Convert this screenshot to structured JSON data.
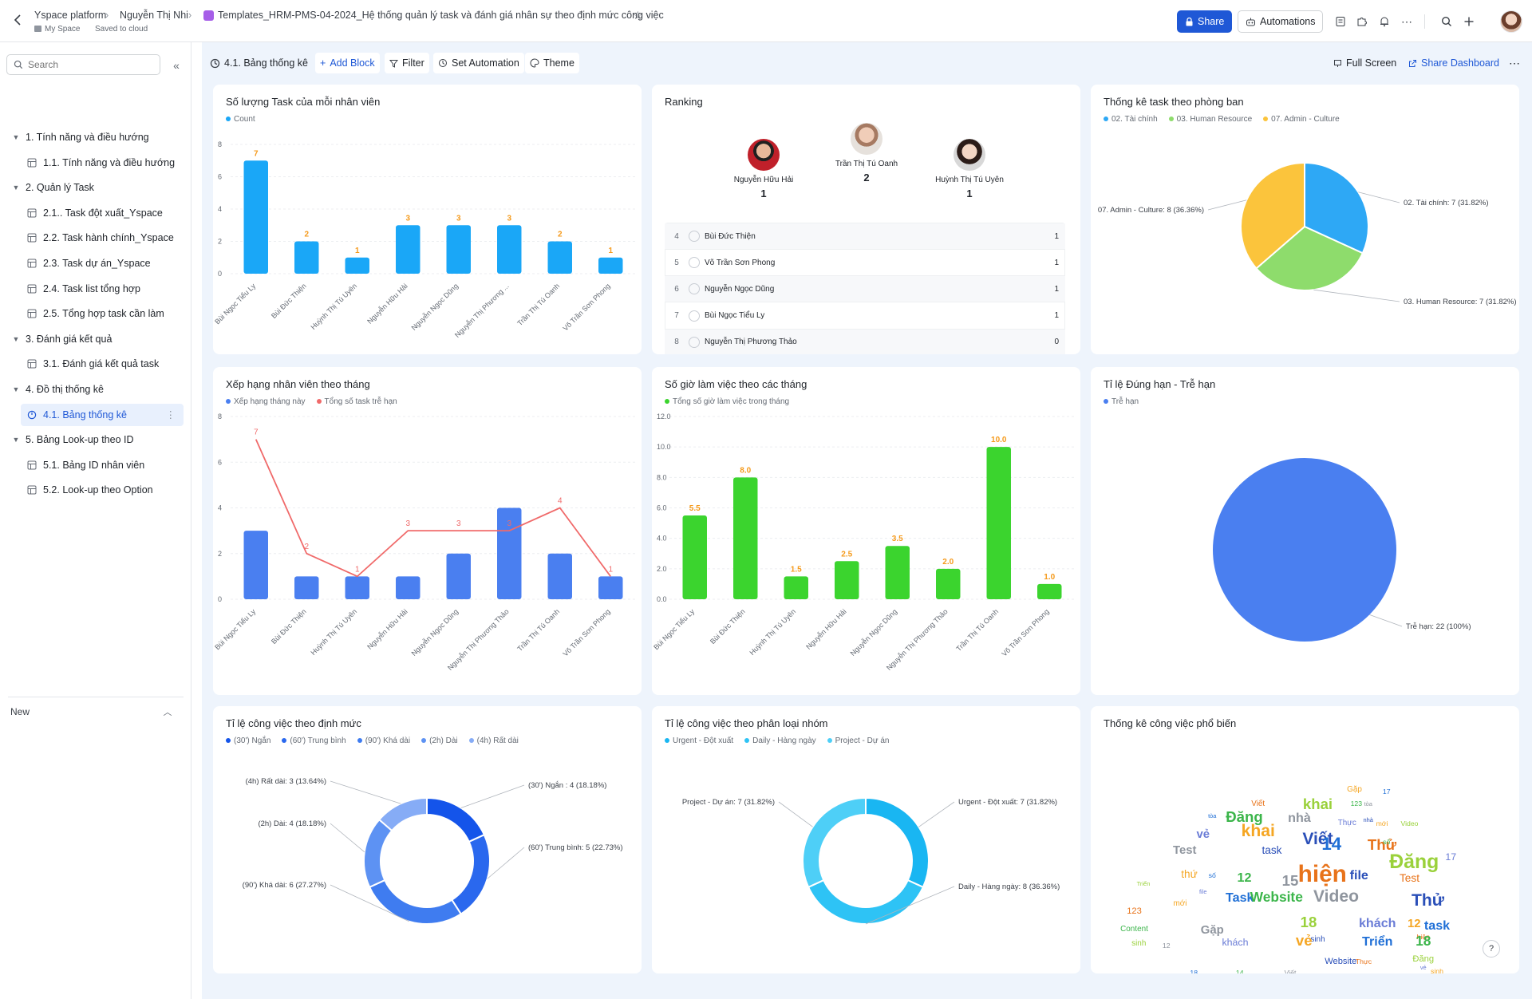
{
  "header": {
    "breadcrumb": [
      "Yspace platform",
      "Nguyễn Thị Nhi"
    ],
    "doc_title": "Templates_HRM-PMS-04-2024_Hệ thống quản lý task và đánh giá nhân sự theo định mức công việc",
    "space_label": "My Space",
    "save_status": "Saved to cloud",
    "share_label": "Share",
    "automations_label": "Automations"
  },
  "sidebar": {
    "search_placeholder": "Search",
    "items": [
      {
        "label": "1. Tính năng và điều hướng",
        "level": 0
      },
      {
        "label": "1.1. Tính năng và điều hướng",
        "level": 1
      },
      {
        "label": "2. Quản lý Task",
        "level": 0
      },
      {
        "label": "2.1.. Task đột xuất_Yspace",
        "level": 1
      },
      {
        "label": "2.2. Task hành chính_Yspace",
        "level": 1
      },
      {
        "label": "2.3. Task dự án_Yspace",
        "level": 1
      },
      {
        "label": "2.4. Task list tổng hợp",
        "level": 1
      },
      {
        "label": "2.5. Tổng hợp task cần làm",
        "level": 1
      },
      {
        "label": "3. Đánh giá kết quả",
        "level": 0
      },
      {
        "label": "3.1. Đánh giá kết quả task",
        "level": 1
      },
      {
        "label": "4. Đồ thị thống kê",
        "level": 0
      },
      {
        "label": "4.1. Bảng thống kê",
        "level": 1,
        "active": true
      },
      {
        "label": "5. Bảng Look-up theo ID",
        "level": 0
      },
      {
        "label": "5.1. Bảng ID nhân viên",
        "level": 1
      },
      {
        "label": "5.2. Look-up theo Option",
        "level": 1
      }
    ],
    "new_label": "New"
  },
  "toolbar": {
    "page_name": "4.1. Bảng thống kê",
    "add_block": "Add Block",
    "filter": "Filter",
    "set_automation": "Set Automation",
    "theme": "Theme",
    "full_screen": "Full Screen",
    "share_dashboard": "Share Dashboard"
  },
  "cards": {
    "tasks_per_employee": {
      "title": "Số lượng Task của mỗi nhân viên",
      "legend": "Count"
    },
    "ranking": {
      "title": "Ranking"
    },
    "dept": {
      "title": "Thống kê task theo phòng ban"
    },
    "monthly_rank": {
      "title": "Xếp hạng nhân viên theo tháng"
    },
    "hours": {
      "title": "Số giờ làm việc theo các tháng"
    },
    "ontime": {
      "title": "Tỉ lệ Đúng hạn - Trễ hạn"
    },
    "norm": {
      "title": "Tỉ lệ công việc theo định mức"
    },
    "group": {
      "title": "Tỉ lệ công việc theo phân loại nhóm"
    },
    "popular": {
      "title": "Thống kê công việc phổ biến"
    }
  },
  "ranking": {
    "podium": [
      {
        "name": "Nguyễn Hữu Hải",
        "value": "1"
      },
      {
        "name": "Trần Thị Tú Oanh",
        "value": "2"
      },
      {
        "name": "Huỳnh Thị Tú Uyên",
        "value": "1"
      }
    ],
    "rows": [
      {
        "rank": "4",
        "name": "Bùi Đức Thiện",
        "value": "1"
      },
      {
        "rank": "5",
        "name": "Võ Trần Sơn Phong",
        "value": "1"
      },
      {
        "rank": "6",
        "name": "Nguyễn Ngọc Dũng",
        "value": "1"
      },
      {
        "rank": "7",
        "name": "Bùi Ngọc Tiểu Ly",
        "value": "1"
      },
      {
        "rank": "8",
        "name": "Nguyễn Thị Phương Thảo",
        "value": "0"
      }
    ]
  },
  "wordcloud": [
    "Gặp",
    "17",
    "123",
    "tòa",
    "nhà",
    "Viết",
    "khai",
    "Thực",
    "mới",
    "tòa",
    "Đăng",
    "nhà",
    "Viết",
    "Thử",
    "Video",
    "vẻ",
    "khai",
    "14",
    "số",
    "Test",
    "task",
    "hiện",
    "Đăng",
    "17",
    "thứ",
    "số",
    "12",
    "15",
    "file",
    "Test",
    "Triển",
    "file",
    "mới",
    "Task",
    "Website",
    "Video",
    "Thử",
    "123",
    "18",
    "khách",
    "12",
    "task",
    "Content",
    "Gặp",
    "sinh",
    "hiện",
    "sinh",
    "khách",
    "vẻ",
    "Triển",
    "18",
    "12",
    "Website",
    "Thực",
    "Đăng",
    "vẻ",
    "sinh",
    "18",
    "14",
    "Viết"
  ],
  "chart_data": [
    {
      "id": "tasks_per_employee",
      "type": "bar",
      "title": "Số lượng Task của mỗi nhân viên",
      "categories": [
        "Bùi Ngọc Tiểu Ly",
        "Bùi Đức Thiện",
        "Huỳnh Thị Tú Uyên",
        "Nguyễn Hữu Hải",
        "Nguyễn Ngọc Dũng",
        "Nguyễn Thị Phương ...",
        "Trần Thị Tú Oanh",
        "Võ Trần Sơn Phong"
      ],
      "series": [
        {
          "name": "Count",
          "values": [
            7,
            2,
            1,
            3,
            3,
            3,
            2,
            1
          ],
          "color": "#1aa7f7"
        }
      ],
      "yticks": [
        0,
        2,
        4,
        6,
        8
      ],
      "ylim": [
        0,
        8
      ],
      "legend": "top-left"
    },
    {
      "id": "dept",
      "type": "pie",
      "title": "Thống kê task theo phòng ban",
      "slices": [
        {
          "name": "02. Tài chính",
          "value": 7,
          "label": "02. Tài chính: 7 (31.82%)",
          "color": "#2ea8f5"
        },
        {
          "name": "03. Human Resource",
          "value": 7,
          "label": "03. Human Resource: 7 (31.82%)",
          "color": "#8edc6c"
        },
        {
          "name": "07. Admin - Culture",
          "value": 8,
          "label": "07. Admin - Culture: 8 (36.36%)",
          "color": "#fbc43c"
        }
      ]
    },
    {
      "id": "monthly_rank",
      "type": "bar",
      "title": "Xếp hạng nhân viên theo tháng",
      "categories": [
        "Bùi Ngọc Tiểu Ly",
        "Bùi Đức Thiện",
        "Huỳnh Thị Tú Uyên",
        "Nguyễn Hữu Hải",
        "Nguyễn Ngọc Dũng",
        "Nguyễn Thị Phương Thảo",
        "Trần Thị Tú Oanh",
        "Võ Trần Sơn Phong"
      ],
      "series": [
        {
          "name": "Xếp hạng tháng này",
          "kind": "bar",
          "values": [
            3,
            1,
            1,
            1,
            2,
            4,
            2,
            1
          ],
          "color": "#4a7ff0"
        },
        {
          "name": "Tổng số task trễ hạn",
          "kind": "line",
          "values": [
            7,
            2,
            1,
            3,
            3,
            3,
            4,
            1
          ],
          "color": "#f06a6a"
        }
      ],
      "yticks": [
        0,
        2,
        4,
        6,
        8
      ],
      "ylim": [
        0,
        8
      ],
      "legend": "top-left"
    },
    {
      "id": "hours",
      "type": "bar",
      "title": "Số giờ làm việc theo các tháng",
      "categories": [
        "Bùi Ngọc Tiểu Ly",
        "Bùi Đức Thiện",
        "Huỳnh Thị Tú Uyên",
        "Nguyễn Hữu Hải",
        "Nguyễn Ngọc Dũng",
        "Nguyễn Thị Phương Thảo",
        "Trần Thị Tú Oanh",
        "Võ Trần Sơn Phong"
      ],
      "series": [
        {
          "name": "Tổng số giờ làm việc trong tháng",
          "values": [
            5.5,
            8.0,
            1.5,
            2.5,
            3.5,
            2.0,
            10.0,
            1.0
          ],
          "color": "#3bd42e"
        }
      ],
      "yticks": [
        "0.0",
        "2.0",
        "4.0",
        "6.0",
        "8.0",
        "10.0",
        "12.0"
      ],
      "ylim": [
        0,
        12
      ],
      "legend": "top-left"
    },
    {
      "id": "ontime",
      "type": "pie",
      "title": "Tỉ lệ Đúng hạn - Trễ hạn",
      "slices": [
        {
          "name": "Trễ hạn",
          "value": 22,
          "label": "Trễ hạn: 22 (100%)",
          "color": "#4a7ff0"
        }
      ]
    },
    {
      "id": "norm",
      "type": "pie",
      "donut": true,
      "title": "Tỉ lệ công việc theo định mức",
      "slices": [
        {
          "name": "(30') Ngắn",
          "value": 4,
          "label": "(30') Ngắn : 4 (18.18%)",
          "color": "#1454ea"
        },
        {
          "name": "(60') Trung bình",
          "value": 5,
          "label": "(60') Trung bình: 5 (22.73%)",
          "color": "#2a68ee"
        },
        {
          "name": "(90') Khá dài",
          "value": 6,
          "label": "(90') Khá dài: 6 (27.27%)",
          "color": "#3f7cf0"
        },
        {
          "name": "(2h) Dài",
          "value": 4,
          "label": "(2h) Dài: 4 (18.18%)",
          "color": "#5d92f3"
        },
        {
          "name": "(4h) Rất dài",
          "value": 3,
          "label": "(4h) Rất dài: 3 (13.64%)",
          "color": "#86acf6"
        }
      ]
    },
    {
      "id": "group",
      "type": "pie",
      "donut": true,
      "title": "Tỉ lệ công việc theo phân loại nhóm",
      "slices": [
        {
          "name": "Urgent - Đột xuất",
          "value": 7,
          "label": "Urgent - Đột xuất: 7 (31.82%)",
          "color": "#19b6f2"
        },
        {
          "name": "Daily - Hàng ngày",
          "value": 8,
          "label": "Daily - Hàng ngày: 8 (36.36%)",
          "color": "#2ec3f5"
        },
        {
          "name": "Project - Dự án",
          "value": 7,
          "label": "Project - Dự án: 7 (31.82%)",
          "color": "#4ecff7"
        }
      ]
    }
  ]
}
